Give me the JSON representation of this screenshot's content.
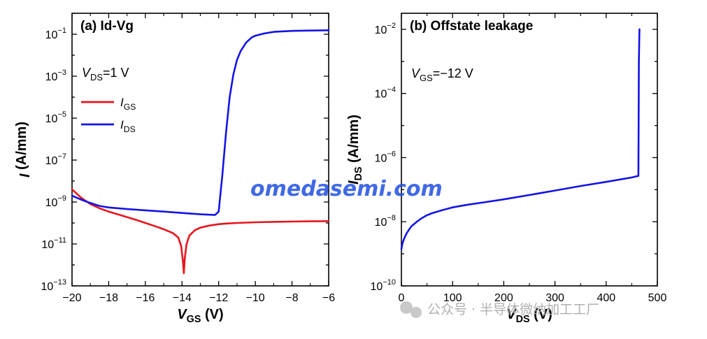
{
  "chart_data": [
    {
      "type": "line",
      "title": "(a) Id-Vg",
      "xlabel": "V_GS (V)",
      "ylabel": "I (A/mm)",
      "xlim": [
        -20,
        -6
      ],
      "ylim_log10": [
        -13,
        0
      ],
      "y_scale": "log",
      "x_ticks": [
        "-20",
        "-18",
        "-16",
        "-14",
        "-12",
        "-10",
        "-8",
        "-6"
      ],
      "y_tick_exponents": [
        "-1",
        "-3",
        "-5",
        "-7",
        "-9",
        "-11",
        "-13"
      ],
      "annotation": {
        "main": "V",
        "sub": "DS",
        "rest": "=1 V"
      },
      "series": [
        {
          "name": "I_GS",
          "color": "#e8141c",
          "x": [
            -20,
            -19.5,
            -19,
            -18.5,
            -18,
            -17.5,
            -17,
            -16.5,
            -16,
            -15.5,
            -15,
            -14.5,
            -14.2,
            -14.05,
            -13.95,
            -13.9,
            -13.85,
            -13.75,
            -13.6,
            -13.3,
            -13,
            -12.5,
            -12,
            -11.5,
            -11,
            -10,
            -9,
            -8,
            -7,
            -6
          ],
          "y": [
            4e-09,
            1.6e-09,
            8e-10,
            5e-10,
            3.5e-10,
            2.6e-10,
            1.9e-10,
            1.4e-10,
            1e-10,
            7.2e-11,
            5e-11,
            3.3e-11,
            2e-11,
            8e-12,
            1.5e-12,
            4e-13,
            2e-12,
            1e-11,
            2.5e-11,
            4.5e-11,
            6e-11,
            7.5e-11,
            8.8e-11,
            9.5e-11,
            1e-10,
            1.08e-10,
            1.13e-10,
            1.17e-10,
            1.2e-10,
            1.22e-10
          ]
        },
        {
          "name": "I_DS",
          "color": "#1414e6",
          "x": [
            -20,
            -19.5,
            -19,
            -18.5,
            -18,
            -17,
            -16,
            -15,
            -14,
            -13,
            -12.2,
            -12.0,
            -11.8,
            -11.6,
            -11.4,
            -11.2,
            -11.0,
            -10.8,
            -10.5,
            -10.2,
            -10.0,
            -9.5,
            -9.0,
            -8.0,
            -7.0,
            -6.0
          ],
          "y": [
            2e-09,
            1.3e-09,
            9e-10,
            6.5e-10,
            5.5e-10,
            4.6e-10,
            4e-10,
            3.5e-10,
            3e-10,
            2.6e-10,
            2.4e-10,
            3.5e-10,
            2e-08,
            2e-06,
            0.0001,
            0.0012,
            0.006,
            0.016,
            0.04,
            0.07,
            0.085,
            0.11,
            0.13,
            0.145,
            0.15,
            0.155
          ]
        }
      ]
    },
    {
      "type": "line",
      "title": "(b) Offstate leakage",
      "xlabel": "V_DS (V)",
      "ylabel": "I_DS (A/mm)",
      "xlim": [
        0,
        500
      ],
      "ylim_log10": [
        -10,
        -1.5
      ],
      "y_scale": "log",
      "x_ticks": [
        "0",
        "100",
        "200",
        "300",
        "400",
        "500"
      ],
      "y_tick_exponents": [
        "-2",
        "-4",
        "-6",
        "-8",
        "-10"
      ],
      "annotation": {
        "main": "V",
        "sub": "GS",
        "rest": "=−12 V"
      },
      "series": [
        {
          "name": "I_DS",
          "color": "#1414e6",
          "x": [
            0,
            2,
            5,
            10,
            15,
            20,
            30,
            40,
            50,
            60,
            80,
            100,
            130,
            160,
            200,
            250,
            300,
            350,
            400,
            450,
            463,
            464,
            465
          ],
          "y": [
            1.4e-09,
            2.1e-09,
            2.9e-09,
            4.3e-09,
            5.7e-09,
            7.3e-09,
            1e-08,
            1.3e-08,
            1.6e-08,
            1.85e-08,
            2.3e-08,
            2.8e-08,
            3.4e-08,
            4e-08,
            5e-08,
            6.8e-08,
            9.4e-08,
            1.3e-07,
            1.75e-07,
            2.4e-07,
            2.7e-07,
            0.001,
            0.01
          ]
        }
      ]
    }
  ],
  "overlay": {
    "watermark": "omedasemi.com",
    "wechat_caption": "公众号 · 半导体微纳加工工厂"
  }
}
